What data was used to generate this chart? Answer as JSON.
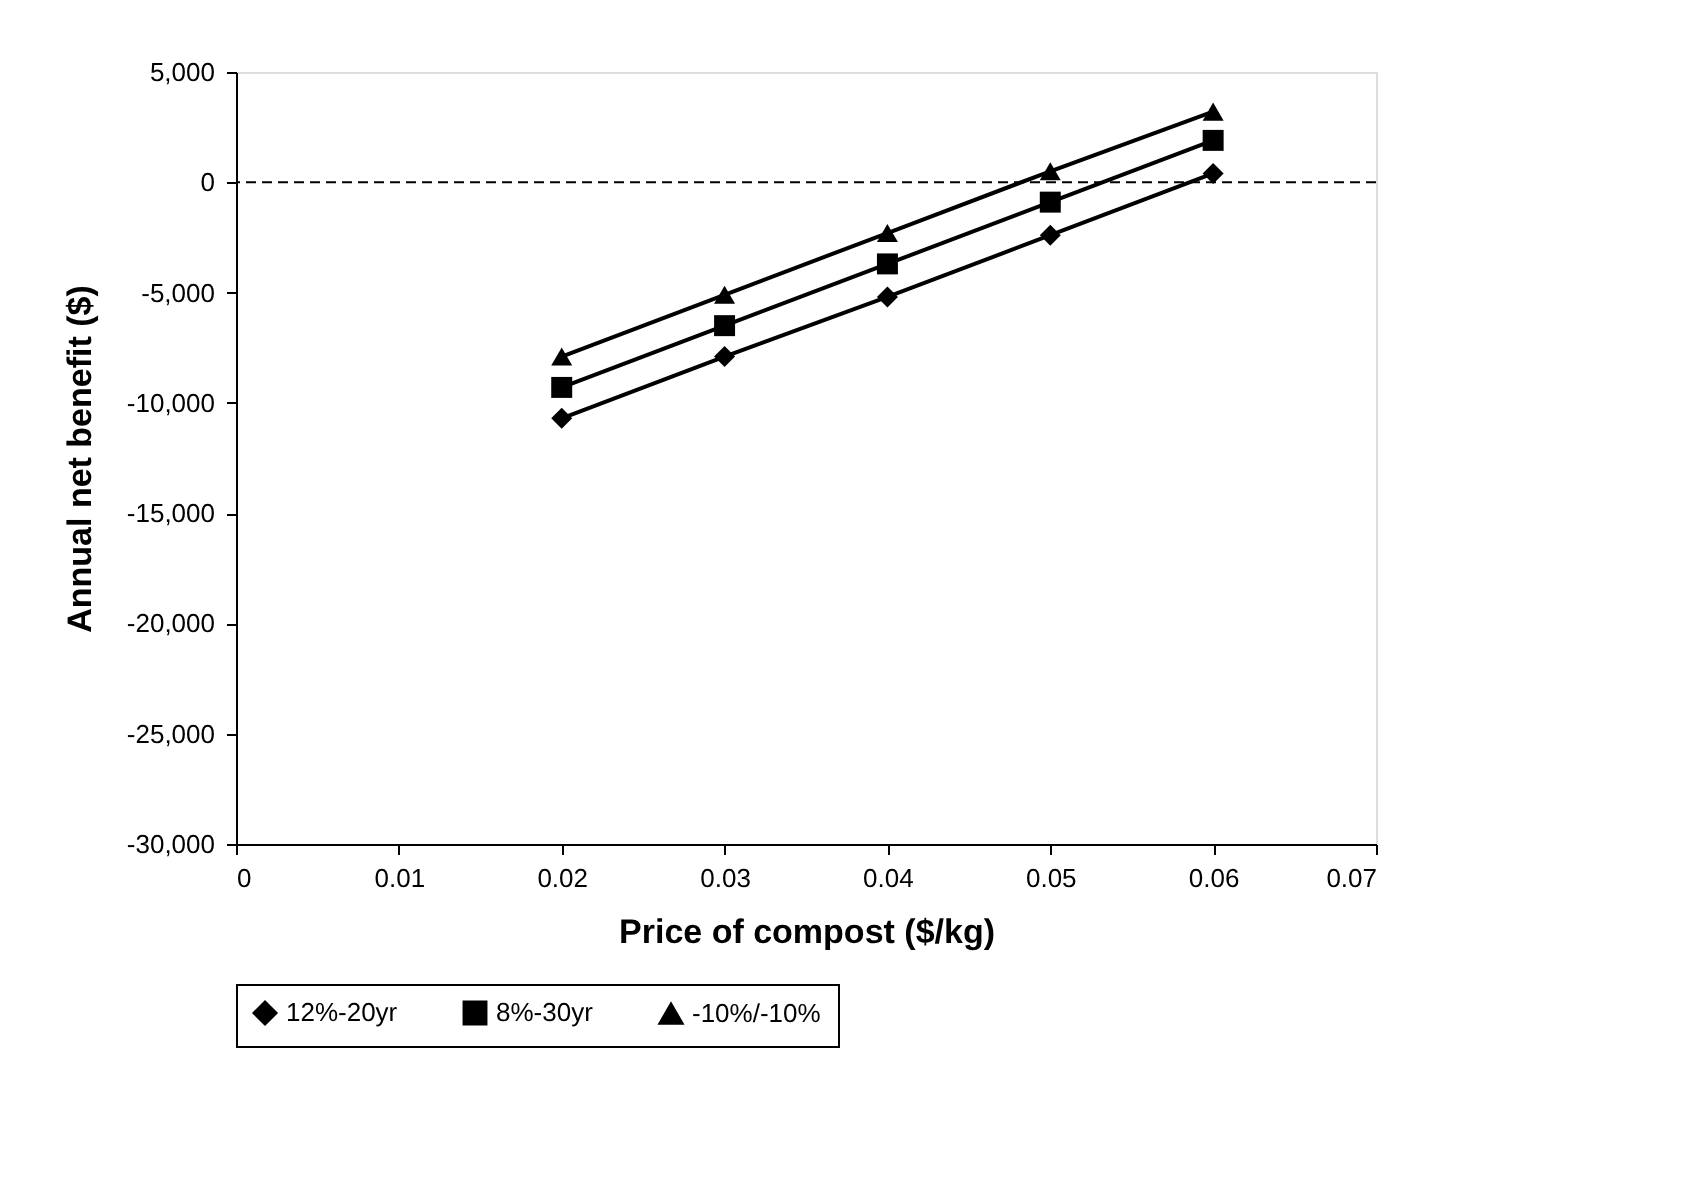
{
  "chart_data": {
    "type": "line",
    "xlabel": "Price of compost ($/kg)",
    "ylabel": "Annual net benefit ($)",
    "x": [
      0.02,
      0.03,
      0.04,
      0.05,
      0.06
    ],
    "series": [
      {
        "name": "12%-20yr",
        "color": "#000000",
        "marker": "diamond",
        "values": [
          -10700,
          -7900,
          -5200,
          -2400,
          400
        ]
      },
      {
        "name": "8%-30yr",
        "color": "#000000",
        "marker": "square",
        "values": [
          -9300,
          -6500,
          -3700,
          -900,
          1900
        ]
      },
      {
        "name": "-10%/-10%",
        "color": "#000000",
        "marker": "triangle",
        "values": [
          -7900,
          -5100,
          -2300,
          500,
          3200
        ]
      }
    ],
    "xlim": [
      0,
      0.07
    ],
    "xticks": [
      0,
      0.01,
      0.02,
      0.03,
      0.04,
      0.05,
      0.06,
      0.07
    ],
    "ylim": [
      -30000,
      5000
    ],
    "yticks": [
      {
        "value": -30000,
        "label": "-30,000"
      },
      {
        "value": -25000,
        "label": "-25,000"
      },
      {
        "value": -20000,
        "label": "-20,000"
      },
      {
        "value": -15000,
        "label": "-15,000"
      },
      {
        "value": -10000,
        "label": "-10,000"
      },
      {
        "value": -5000,
        "label": "-5,000"
      },
      0,
      {
        "value": 5000,
        "label": "5,000"
      }
    ],
    "ref_lines": [
      {
        "axis": "y",
        "value": 0,
        "line_style": "dashed",
        "color": "#000000"
      }
    ],
    "grid": false,
    "legend": "bottom",
    "line_style": "solid"
  }
}
